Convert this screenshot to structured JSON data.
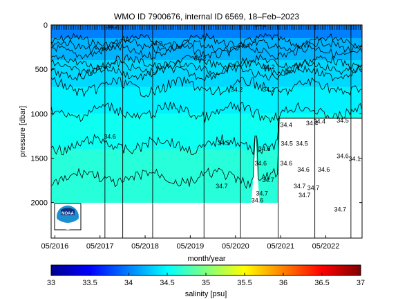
{
  "chart_data": {
    "type": "heatmap",
    "title": "WMO ID 7900676, internal ID 6569, 18–Feb–2023",
    "xlabel": "month/year",
    "ylabel": "pressure [dbar]",
    "x_range": [
      "2016-04-01",
      "2023-02-18"
    ],
    "x_ticks": [
      "05/2016",
      "05/2017",
      "05/2018",
      "05/2019",
      "05/2020",
      "05/2021",
      "05/2022"
    ],
    "y_range": [
      0,
      2400
    ],
    "y_reversed": true,
    "y_ticks": [
      0,
      500,
      1000,
      1500,
      2000
    ],
    "colorbar": {
      "label": "salinity [psu]",
      "range": [
        33,
        37
      ],
      "ticks": [
        33,
        33.5,
        34,
        34.5,
        35,
        35.5,
        36,
        36.5,
        37
      ],
      "colormap": "jet"
    },
    "profile_dates": [
      "2017-06-10",
      "2017-11-01",
      "2018-07-01",
      "2019-08-20",
      "2020-06-10",
      "2021-04-10",
      "2022-02-01",
      "2022-11-20"
    ],
    "salinity_bands": [
      {
        "pressure_from": 0,
        "pressure_to": 150,
        "salinity": 34.0
      },
      {
        "pressure_from": 150,
        "pressure_to": 400,
        "salinity": 34.2
      },
      {
        "pressure_from": 400,
        "pressure_to": 700,
        "salinity": 34.35
      },
      {
        "pressure_from": 700,
        "pressure_to": 1000,
        "salinity": 34.45
      },
      {
        "pressure_from": 1000,
        "pressure_to": 1400,
        "salinity": 34.55
      },
      {
        "pressure_from": 1400,
        "pressure_to": 2000,
        "salinity": 34.65
      }
    ],
    "data_extent": [
      {
        "date": "2016-04-01",
        "max_pressure": 2000
      },
      {
        "date": "2020-09-15",
        "max_pressure": 2000
      },
      {
        "date": "2020-10-01",
        "max_pressure": 1250
      },
      {
        "date": "2020-10-20",
        "max_pressure": 1250
      },
      {
        "date": "2020-11-01",
        "max_pressure": 2000
      },
      {
        "date": "2021-04-10",
        "max_pressure": 2000
      },
      {
        "date": "2021-04-15",
        "max_pressure": 1050
      },
      {
        "date": "2023-02-18",
        "max_pressure": 1050
      }
    ],
    "contour_levels": [
      34.2,
      34.3,
      34.4,
      34.5,
      34.6,
      34.7
    ],
    "contour_labels": [
      {
        "text": "34.6",
        "date": "2017-07-20",
        "pressure": 1280
      },
      {
        "text": "34.5",
        "date": "2020-01-25",
        "pressure": 1350
      },
      {
        "text": "34.7",
        "date": "2020-01-10",
        "pressure": 1840
      },
      {
        "text": "34.6",
        "date": "2020-11-20",
        "pressure": 1580
      },
      {
        "text": "34.7",
        "date": "2021-01-20",
        "pressure": 1770
      },
      {
        "text": "34.6",
        "date": "2020-10-25",
        "pressure": 2000
      },
      {
        "text": "34.6",
        "date": "2020-12-20",
        "pressure": 1420
      },
      {
        "text": "34.2",
        "date": "2019-07-20",
        "pressure": 400
      },
      {
        "text": "34.2",
        "date": "2020-05-10",
        "pressure": 750
      },
      {
        "text": "34.2",
        "date": "2021-01-25",
        "pressure": 750
      },
      {
        "text": "34.2",
        "date": "2021-01-25",
        "pressure": 500
      },
      {
        "text": "34.4",
        "date": "2021-06-15",
        "pressure": 1150
      },
      {
        "text": "34.4",
        "date": "2022-01-10",
        "pressure": 1130
      },
      {
        "text": "34.4",
        "date": "2022-03-10",
        "pressure": 1110
      },
      {
        "text": "34.5",
        "date": "2022-09-15",
        "pressure": 1100
      },
      {
        "text": "34.5",
        "date": "2021-06-20",
        "pressure": 1360
      },
      {
        "text": "34.5",
        "date": "2021-10-20",
        "pressure": 1360
      },
      {
        "text": "34.6",
        "date": "2021-06-15",
        "pressure": 1580
      },
      {
        "text": "34.6",
        "date": "2021-11-01",
        "pressure": 1650
      },
      {
        "text": "34.6",
        "date": "2022-04-15",
        "pressure": 1650
      },
      {
        "text": "34.6",
        "date": "2022-09-15",
        "pressure": 1500
      },
      {
        "text": "34.1",
        "date": "2022-12-20",
        "pressure": 1530
      },
      {
        "text": "34.7",
        "date": "2021-10-01",
        "pressure": 1840
      },
      {
        "text": "34.7",
        "date": "2022-01-20",
        "pressure": 1860
      },
      {
        "text": "34.7",
        "date": "2021-11-10",
        "pressure": 1940
      },
      {
        "text": "34.7",
        "date": "2022-08-25",
        "pressure": 2100
      },
      {
        "text": "34.7",
        "date": "2020-12-01",
        "pressure": 1920
      },
      {
        "text": "34.2",
        "date": "2020-11-20",
        "pressure": 20
      },
      {
        "text": "34.2",
        "date": "2017-08-10",
        "pressure": 40
      },
      {
        "text": "34.2",
        "date": "2018-08-01",
        "pressure": 230
      }
    ]
  },
  "logo": {
    "text": "NOAA",
    "icon": "noaa-logo-icon"
  }
}
